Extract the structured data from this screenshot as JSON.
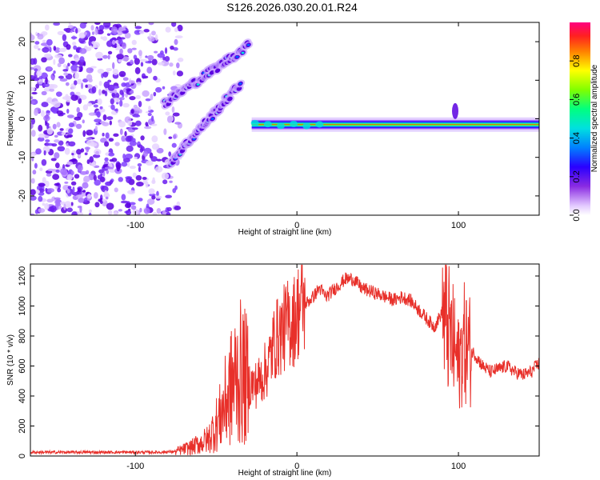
{
  "title": "S126.2026.030.20.01.R24",
  "chart_data": [
    {
      "type": "heatmap",
      "name": "spectrogram",
      "xlabel": "Height of straight line (km)",
      "ylabel": "Frequency (Hz)",
      "xlim": [
        -165,
        150
      ],
      "ylim": [
        -25,
        25
      ],
      "xticks": [
        -100,
        0,
        100
      ],
      "yticks": [
        20,
        10,
        0,
        -10,
        -20
      ],
      "colorbar": {
        "label": "Normalized spectral amplitude",
        "range": [
          0,
          1
        ],
        "ticks": [
          0.0,
          0.2,
          0.4,
          0.6,
          0.8
        ]
      },
      "features": {
        "noise_region": {
          "x": [
            -165,
            -80
          ],
          "y": [
            -25,
            25
          ]
        },
        "upper_branch": {
          "x": [
            -82,
            -30
          ],
          "y": [
            4,
            19
          ]
        },
        "lower_branch": {
          "x": [
            -78,
            -35
          ],
          "y": [
            -11,
            9
          ]
        },
        "flat_band": {
          "x": [
            -28,
            150
          ],
          "y": -1.5
        }
      }
    },
    {
      "type": "line",
      "name": "snr",
      "xlabel": "Height of straight line (km)",
      "ylabel": "SNR (10 * v/v)",
      "xlim": [
        -165,
        150
      ],
      "ylim": [
        0,
        1280
      ],
      "xticks": [
        -100,
        0,
        100
      ],
      "yticks": [
        0,
        200,
        400,
        600,
        800,
        1000,
        1200
      ],
      "color": "#e8302a",
      "series": [
        {
          "name": "SNR",
          "x": [
            -165,
            -140,
            -120,
            -100,
            -85,
            -75,
            -65,
            -55,
            -48,
            -42,
            -38,
            -34,
            -30,
            -26,
            -22,
            -18,
            -14,
            -10,
            -6,
            -2,
            2,
            6,
            10,
            14,
            18,
            22,
            26,
            30,
            35,
            40,
            45,
            50,
            55,
            60,
            65,
            70,
            75,
            80,
            85,
            90,
            95,
            98,
            100,
            103,
            106,
            110,
            115,
            120,
            125,
            130,
            135,
            140,
            145,
            150
          ],
          "y": [
            25,
            25,
            25,
            25,
            25,
            30,
            60,
            110,
            250,
            420,
            520,
            560,
            480,
            470,
            520,
            600,
            760,
            820,
            880,
            900,
            1000,
            1020,
            1060,
            1120,
            1060,
            1100,
            1140,
            1180,
            1180,
            1120,
            1100,
            1080,
            1060,
            1040,
            1060,
            1040,
            980,
            920,
            860,
            960,
            800,
            700,
            600,
            760,
            720,
            680,
            600,
            560,
            580,
            600,
            560,
            540,
            560,
            620
          ]
        }
      ]
    }
  ]
}
